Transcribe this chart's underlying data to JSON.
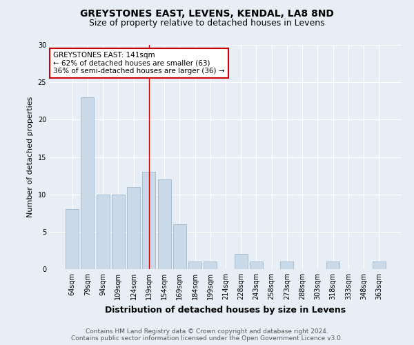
{
  "title": "GREYSTONES EAST, LEVENS, KENDAL, LA8 8ND",
  "subtitle": "Size of property relative to detached houses in Levens",
  "xlabel": "Distribution of detached houses by size in Levens",
  "ylabel": "Number of detached properties",
  "categories": [
    "64sqm",
    "79sqm",
    "94sqm",
    "109sqm",
    "124sqm",
    "139sqm",
    "154sqm",
    "169sqm",
    "184sqm",
    "199sqm",
    "214sqm",
    "228sqm",
    "243sqm",
    "258sqm",
    "273sqm",
    "288sqm",
    "303sqm",
    "318sqm",
    "333sqm",
    "348sqm",
    "363sqm"
  ],
  "values": [
    8,
    23,
    10,
    10,
    11,
    13,
    12,
    6,
    1,
    1,
    0,
    2,
    1,
    0,
    1,
    0,
    0,
    1,
    0,
    0,
    1
  ],
  "bar_color": "#c9d9e8",
  "bar_edge_color": "#a0b8cc",
  "vline_x_index": 5,
  "annotation_title": "GREYSTONES EAST: 141sqm",
  "annotation_line2": "← 62% of detached houses are smaller (63)",
  "annotation_line3": "36% of semi-detached houses are larger (36) →",
  "annotation_box_color": "#ffffff",
  "annotation_box_edge": "#cc0000",
  "vline_color": "#cc0000",
  "ylim": [
    0,
    30
  ],
  "yticks": [
    0,
    5,
    10,
    15,
    20,
    25,
    30
  ],
  "background_color": "#e8eef5",
  "grid_color": "#ffffff",
  "footer_line1": "Contains HM Land Registry data © Crown copyright and database right 2024.",
  "footer_line2": "Contains public sector information licensed under the Open Government Licence v3.0.",
  "title_fontsize": 10,
  "subtitle_fontsize": 9,
  "xlabel_fontsize": 9,
  "ylabel_fontsize": 8,
  "tick_fontsize": 7,
  "footer_fontsize": 6.5,
  "annotation_fontsize": 7.5
}
